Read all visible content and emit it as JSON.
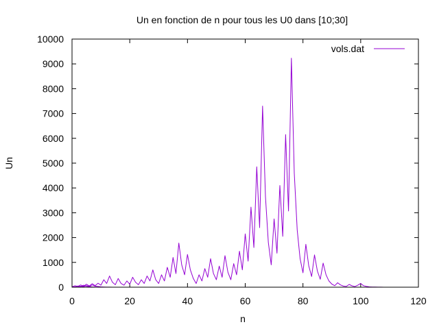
{
  "chart_data": {
    "type": "line",
    "title": "Un en fonction de n pour tous les U0 dans [10;30]",
    "xlabel": "n",
    "ylabel": "Un",
    "xlim": [
      0,
      120
    ],
    "ylim": [
      0,
      10000
    ],
    "xticks": [
      0,
      20,
      40,
      60,
      80,
      100,
      120
    ],
    "yticks": [
      0,
      1000,
      2000,
      3000,
      4000,
      5000,
      6000,
      7000,
      8000,
      9000,
      10000
    ],
    "xtick_labels": [
      "0",
      "20",
      "40",
      "60",
      "80",
      "100",
      "120"
    ],
    "ytick_labels": [
      "0",
      "1000",
      "2000",
      "3000",
      "4000",
      "5000",
      "6000",
      "7000",
      "8000",
      "9000",
      "10000"
    ],
    "grid": false,
    "legend_position": "top-right",
    "series": [
      {
        "name": "vols.dat",
        "color": "#9400d3",
        "x": [
          0,
          1,
          2,
          3,
          4,
          5,
          6,
          7,
          8,
          9,
          10,
          11,
          12,
          13,
          14,
          15,
          16,
          17,
          18,
          19,
          20,
          21,
          22,
          23,
          24,
          25,
          26,
          27,
          28,
          29,
          30,
          31,
          32,
          33,
          34,
          35,
          36,
          37,
          38,
          39,
          40,
          41,
          42,
          43,
          44,
          45,
          46,
          47,
          48,
          49,
          50,
          51,
          52,
          53,
          54,
          55,
          56,
          57,
          58,
          59,
          60,
          61,
          62,
          63,
          64,
          65,
          66,
          67,
          68,
          69,
          70,
          71,
          72,
          73,
          74,
          75,
          76,
          77,
          78,
          79,
          80,
          81,
          82,
          83,
          84,
          85,
          86,
          87,
          88,
          89,
          90,
          91,
          92,
          93,
          94,
          95,
          96,
          97,
          98,
          99,
          100,
          101,
          102,
          103,
          104,
          105,
          106,
          107,
          108
        ],
        "y": [
          10,
          60,
          30,
          90,
          40,
          120,
          50,
          140,
          60,
          160,
          80,
          300,
          150,
          450,
          200,
          100,
          350,
          150,
          80,
          250,
          120,
          400,
          200,
          100,
          300,
          150,
          450,
          250,
          700,
          300,
          150,
          500,
          250,
          800,
          400,
          1200,
          550,
          1780,
          900,
          500,
          1320,
          700,
          350,
          150,
          500,
          250,
          750,
          400,
          1150,
          550,
          300,
          850,
          400,
          1270,
          600,
          300,
          950,
          500,
          1450,
          700,
          2150,
          1050,
          3230,
          1600,
          4850,
          2400,
          7300,
          3650,
          1800,
          900,
          2750,
          1370,
          4100,
          2050,
          6150,
          3070,
          9230,
          4600,
          2300,
          1150,
          580,
          1730,
          860,
          430,
          1300,
          650,
          320,
          970,
          500,
          250,
          125,
          60,
          180,
          90,
          45,
          30,
          110,
          55,
          25,
          80,
          150,
          60,
          30,
          15,
          8,
          5,
          3,
          2,
          1
        ]
      },
      {
        "name": "",
        "color": "#9400d3",
        "x": [
          0,
          1,
          2,
          3,
          4,
          5,
          6,
          7,
          8,
          9,
          10,
          11,
          12,
          13,
          14,
          15,
          16
        ],
        "y": [
          5,
          15,
          8,
          40,
          20,
          60,
          30,
          90,
          45,
          30,
          15,
          8,
          4,
          2,
          1,
          1,
          1
        ]
      },
      {
        "name": "",
        "color": "#9400d3",
        "x": [
          0,
          1,
          2,
          3,
          4,
          5,
          6,
          7,
          8,
          9,
          10
        ],
        "y": [
          20,
          10,
          50,
          25,
          80,
          40,
          20,
          10,
          5,
          2,
          1
        ]
      }
    ]
  }
}
